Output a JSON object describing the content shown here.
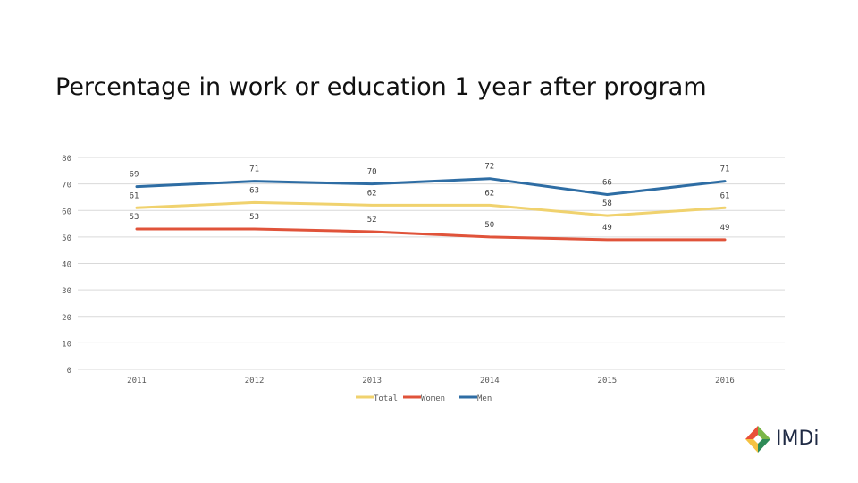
{
  "page": {
    "title": "Percentage in work or education 1 year after program"
  },
  "chart_data": {
    "type": "line",
    "title": "Percentage in work or education 1 year after program",
    "xlabel": "",
    "ylabel": "",
    "categories": [
      "2011",
      "2012",
      "2013",
      "2014",
      "2015",
      "2016"
    ],
    "ylim": [
      0,
      80
    ],
    "yticks": [
      0,
      10,
      20,
      30,
      40,
      50,
      60,
      70,
      80
    ],
    "grid": true,
    "legend_position": "bottom",
    "data_labels": true,
    "series": [
      {
        "name": "Total",
        "color": "#f0d26e",
        "values": [
          61,
          63,
          62,
          62,
          58,
          61
        ]
      },
      {
        "name": "Women",
        "color": "#e0533a",
        "values": [
          53,
          53,
          52,
          50,
          49,
          49
        ]
      },
      {
        "name": "Men",
        "color": "#2e6da4",
        "values": [
          69,
          71,
          70,
          72,
          66,
          71
        ]
      }
    ]
  },
  "logo": {
    "text": "IMDi",
    "colors": [
      "#e94f37",
      "#f5c242",
      "#7ab648",
      "#2e8b57"
    ]
  }
}
